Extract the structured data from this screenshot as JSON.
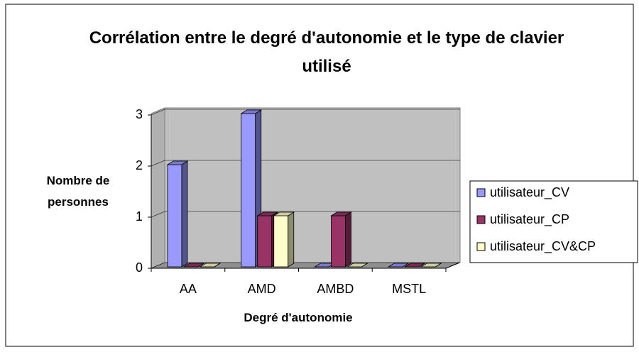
{
  "chart_data": {
    "type": "bar3d",
    "title": "Corrélation entre le degré d'autonomie et le type de clavier utilisé",
    "x_label": "Degré d'autonomie",
    "y_label": "Nombre de personnes",
    "categories": [
      "AA",
      "AMD",
      "AMBD",
      "MSTL"
    ],
    "series": [
      {
        "name": "utilisateur_CV",
        "color": "#9999ff",
        "values": [
          2,
          3,
          0,
          0
        ]
      },
      {
        "name": "utilisateur_CP",
        "color": "#993366",
        "values": [
          0,
          1,
          1,
          0
        ]
      },
      {
        "name": "utilisateur_CV&CP",
        "color": "#ffffcc",
        "values": [
          0,
          1,
          0,
          0
        ]
      }
    ],
    "ylim": [
      0,
      3
    ],
    "yticks": [
      0,
      1,
      2,
      3
    ],
    "grid": true,
    "legend": "right"
  }
}
